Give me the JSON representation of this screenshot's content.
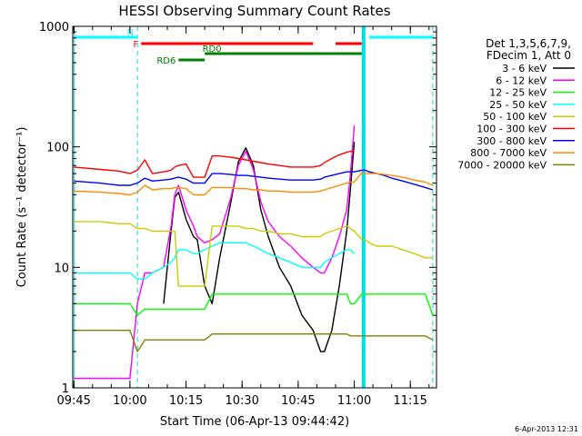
{
  "chart_data": {
    "type": "line",
    "title": "HESSI Observing Summary Count Rates",
    "xlabel": "Start Time (06-Apr-13 09:44:42)",
    "ylabel": "Count Rate (s⁻¹ detector⁻¹)",
    "x_ticks": [
      "09:45",
      "10:00",
      "10:15",
      "10:30",
      "10:45",
      "11:00",
      "11:15"
    ],
    "y_ticks": [
      "1",
      "10",
      "100",
      "1000"
    ],
    "xlim": [
      "09:44:42",
      "11:22:00"
    ],
    "ylim": [
      1,
      1000
    ],
    "y_scale": "log",
    "legend": {
      "position": "right",
      "header": [
        "Det 1,3,5,6,7,9,",
        "FDecim 1, Att 0"
      ]
    },
    "x": [
      "09:45",
      "09:52",
      "09:57",
      "10:00",
      "10:02",
      "10:04",
      "10:06",
      "10:09",
      "10:11",
      "10:12",
      "10:13",
      "10:15",
      "10:17",
      "10:18",
      "10:20",
      "10:22",
      "10:24",
      "10:27",
      "10:29",
      "10:31",
      "10:33",
      "10:35",
      "10:37",
      "10:40",
      "10:43",
      "10:46",
      "10:49",
      "10:51",
      "10:52",
      "10:54",
      "10:56",
      "10:58",
      "10:59",
      "11:00",
      "11:02",
      "11:03",
      "11:04",
      "11:06",
      "11:08",
      "11:10",
      "11:13",
      "11:16",
      "11:19",
      "11:21"
    ],
    "series": [
      {
        "name": "3 - 6 keV",
        "color": "#000000",
        "values": [
          null,
          null,
          null,
          null,
          null,
          null,
          null,
          5,
          20,
          38,
          42,
          25,
          18,
          17,
          7,
          5,
          12,
          35,
          75,
          98,
          70,
          30,
          18,
          10,
          7,
          4,
          3,
          2,
          2,
          3,
          7,
          20,
          45,
          110,
          null,
          null,
          null,
          null,
          null,
          null,
          null,
          null,
          null,
          null
        ]
      },
      {
        "name": "6 - 12 keV",
        "color": "#ff00ff",
        "values": [
          1.2,
          1.2,
          1.2,
          1.2,
          5,
          9,
          9,
          10,
          22,
          40,
          48,
          30,
          22,
          18,
          16,
          17,
          19,
          38,
          70,
          92,
          65,
          35,
          24,
          18,
          15,
          12,
          10,
          9,
          9,
          12,
          18,
          30,
          60,
          150,
          null,
          null,
          null,
          null,
          null,
          null,
          null,
          null,
          null,
          null
        ]
      },
      {
        "name": "12 - 25 keV",
        "color": "#00ff00",
        "values": [
          5,
          5,
          5,
          5,
          4,
          4.5,
          4.5,
          4.5,
          4.5,
          4.5,
          4.5,
          4.5,
          4.5,
          4.5,
          4.5,
          6,
          6,
          6,
          6,
          6,
          6,
          6,
          6,
          6,
          6,
          6,
          6,
          6,
          6,
          6,
          6,
          6,
          5,
          5,
          6,
          6,
          6,
          6,
          6,
          6,
          6,
          6,
          6,
          4
        ]
      },
      {
        "name": "25 - 50 keV",
        "color": "#00ffff",
        "values": [
          9,
          9,
          9,
          9,
          8,
          8,
          9,
          10,
          11,
          12,
          14,
          14,
          13,
          13,
          14,
          15,
          16,
          16,
          16,
          16,
          15,
          14,
          13,
          12,
          11,
          10,
          10,
          10,
          11,
          12,
          13,
          14,
          14,
          13,
          null,
          null,
          null,
          null,
          null,
          null,
          null,
          null,
          null,
          null
        ]
      },
      {
        "name": "50 - 100 keV",
        "color": "#cccc00",
        "values": [
          24,
          24,
          23,
          23,
          21,
          21,
          20,
          20,
          20,
          20,
          7,
          7,
          7,
          7,
          7,
          22,
          22,
          22,
          22,
          21,
          21,
          20,
          20,
          19,
          19,
          18,
          18,
          18,
          19,
          20,
          21,
          22,
          21,
          20,
          17,
          17,
          16,
          15,
          15,
          15,
          14,
          13,
          12,
          12
        ]
      },
      {
        "name": "100 - 300 keV",
        "color": "#ff0000",
        "values": [
          68,
          65,
          63,
          60,
          64,
          78,
          60,
          62,
          64,
          68,
          70,
          72,
          56,
          56,
          56,
          84,
          84,
          82,
          80,
          78,
          76,
          74,
          72,
          70,
          68,
          68,
          68,
          70,
          74,
          80,
          86,
          90,
          92,
          92,
          null,
          null,
          null,
          null,
          null,
          null,
          null,
          null,
          null,
          null
        ]
      },
      {
        "name": "300 - 800 keV",
        "color": "#0000ff",
        "values": [
          52,
          50,
          48,
          48,
          50,
          55,
          52,
          53,
          54,
          55,
          56,
          54,
          50,
          50,
          50,
          60,
          60,
          59,
          58,
          58,
          57,
          56,
          55,
          54,
          53,
          53,
          53,
          54,
          56,
          58,
          60,
          62,
          62,
          62,
          64,
          64,
          62,
          60,
          58,
          55,
          52,
          49,
          46,
          44
        ]
      },
      {
        "name": "800 - 7000 keV",
        "color": "#ff8c00",
        "values": [
          43,
          42,
          41,
          40,
          42,
          48,
          44,
          45,
          45,
          46,
          46,
          45,
          40,
          40,
          40,
          46,
          46,
          46,
          45,
          45,
          44,
          44,
          43,
          43,
          42,
          42,
          42,
          43,
          44,
          46,
          48,
          50,
          51,
          51,
          61,
          60,
          60,
          60,
          59,
          58,
          56,
          53,
          51,
          48
        ]
      },
      {
        "name": "7000 - 20000 keV",
        "color": "#808000",
        "values": [
          3,
          3,
          3,
          3,
          2,
          2.5,
          2.5,
          2.5,
          2.5,
          2.5,
          2.5,
          2.5,
          2.5,
          2.5,
          2.5,
          2.8,
          2.8,
          2.8,
          2.8,
          2.8,
          2.8,
          2.8,
          2.8,
          2.8,
          2.8,
          2.8,
          2.8,
          2.8,
          2.8,
          2.8,
          2.8,
          2.8,
          2.7,
          2.7,
          2.7,
          2.7,
          2.7,
          2.7,
          2.7,
          2.7,
          2.7,
          2.7,
          2.7,
          2.5
        ]
      }
    ],
    "annotations": [
      {
        "label": "N",
        "color": "#00ffff",
        "x_start": "09:45",
        "x_end": "10:02",
        "level": 1
      },
      {
        "label": "",
        "color": "#00ffff",
        "x_start": "11:04",
        "x_end": "11:21",
        "level": 1
      },
      {
        "label": "F",
        "color": "#ff0000",
        "x_start": "10:03",
        "x_end": "10:49",
        "level": 2
      },
      {
        "label": "",
        "color": "#ff0000",
        "x_start": "10:55",
        "x_end": "11:02",
        "level": 2
      },
      {
        "label": "RD0",
        "color": "#008000",
        "x_start": "10:20",
        "x_end": "11:02",
        "level": 3
      },
      {
        "label": "RD6",
        "color": "#008000",
        "x_start": "10:13",
        "x_end": "10:20",
        "level": 4
      }
    ],
    "shadows": [
      {
        "label": "",
        "x_start": "09:45",
        "x_end": "09:45"
      },
      {
        "label": "",
        "x_start": "11:02",
        "x_end": "11:03"
      }
    ],
    "dashed_lines": [
      "10:02",
      "11:21"
    ]
  },
  "timestamp": "6-Apr-2013 12:31"
}
